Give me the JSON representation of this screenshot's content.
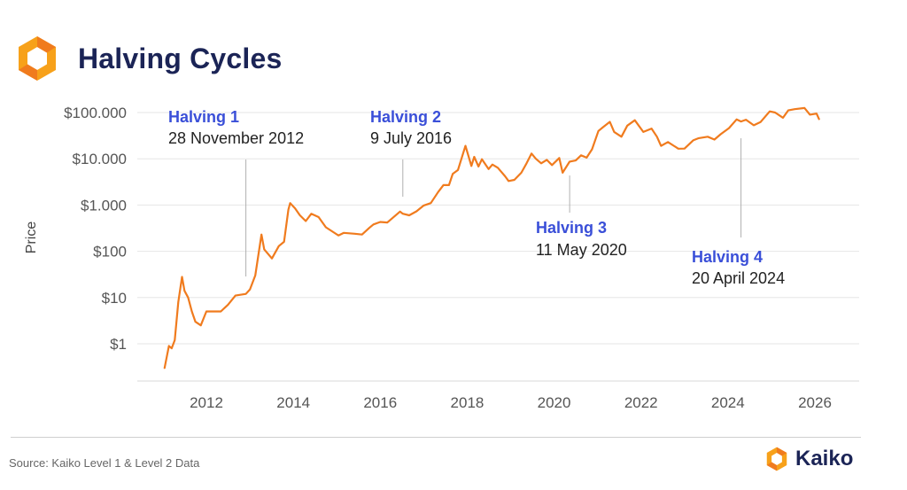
{
  "header": {
    "title": "Halving Cycles",
    "logo_icon": "kaiko-hexagon-icon"
  },
  "footer": {
    "source": "Source: Kaiko Level 1 & Level 2 Data",
    "brand": "Kaiko",
    "brand_icon": "kaiko-hexagon-icon"
  },
  "colors": {
    "line": "#f07b1e",
    "annotation_title": "#3a4fd8",
    "brand_navy": "#1b2456",
    "logo_orange": "#f7a11a"
  },
  "chart_data": {
    "type": "line",
    "title": "",
    "xlabel": "",
    "ylabel": "Price",
    "y_scale": "log",
    "ylim": [
      0.1,
      150000
    ],
    "xlim": [
      "2010-11-01",
      "2026-06-30"
    ],
    "grid": true,
    "x_ticks": [
      "2012",
      "2014",
      "2016",
      "2018",
      "2020",
      "2022",
      "2024",
      "2026"
    ],
    "y_ticks": [
      {
        "value": 1,
        "label": "$1"
      },
      {
        "value": 10,
        "label": "$10"
      },
      {
        "value": 100,
        "label": "$100"
      },
      {
        "value": 1000,
        "label": "$1.000"
      },
      {
        "value": 10000,
        "label": "$10.000"
      },
      {
        "value": 100000,
        "label": "$100.000"
      }
    ],
    "series": [
      {
        "x": [
          "2011-01-15",
          "2011-02-20",
          "2011-03-15",
          "2011-04-10",
          "2011-05-10",
          "2011-06-10",
          "2011-07-01",
          "2011-08-01",
          "2011-09-01",
          "2011-10-01",
          "2011-11-15",
          "2012-01-01",
          "2012-03-01",
          "2012-05-01",
          "2012-07-01",
          "2012-09-01",
          "2012-11-28",
          "2013-01-01",
          "2013-02-15",
          "2013-04-08",
          "2013-05-01",
          "2013-07-05",
          "2013-09-01",
          "2013-10-15",
          "2013-11-20",
          "2013-12-05",
          "2014-01-15",
          "2014-02-25",
          "2014-04-15",
          "2014-06-01",
          "2014-08-01",
          "2014-10-01",
          "2015-01-15",
          "2015-03-01",
          "2015-06-01",
          "2015-08-01",
          "2015-10-01",
          "2015-11-05",
          "2016-01-01",
          "2016-03-01",
          "2016-06-15",
          "2016-07-09",
          "2016-09-01",
          "2016-11-01",
          "2017-01-01",
          "2017-03-01",
          "2017-05-01",
          "2017-06-15",
          "2017-08-01",
          "2017-09-01",
          "2017-10-15",
          "2017-12-17",
          "2018-02-05",
          "2018-03-01",
          "2018-04-06",
          "2018-05-05",
          "2018-06-30",
          "2018-08-01",
          "2018-09-15",
          "2018-11-15",
          "2018-12-15",
          "2019-02-01",
          "2019-04-01",
          "2019-05-15",
          "2019-06-26",
          "2019-08-01",
          "2019-09-15",
          "2019-11-01",
          "2019-12-15",
          "2020-02-14",
          "2020-03-13",
          "2020-05-11",
          "2020-07-01",
          "2020-08-15",
          "2020-10-01",
          "2020-11-15",
          "2021-01-08",
          "2021-02-15",
          "2021-04-14",
          "2021-05-20",
          "2021-07-20",
          "2021-09-07",
          "2021-11-10",
          "2022-01-20",
          "2022-03-30",
          "2022-05-15",
          "2022-06-18",
          "2022-08-15",
          "2022-11-10",
          "2023-01-01",
          "2023-03-15",
          "2023-05-01",
          "2023-07-15",
          "2023-09-10",
          "2023-11-01",
          "2024-01-10",
          "2024-03-14",
          "2024-04-20",
          "2024-06-01",
          "2024-08-05",
          "2024-10-01",
          "2024-12-17",
          "2025-02-01",
          "2025-04-08",
          "2025-05-22",
          "2025-07-15",
          "2025-10-06",
          "2025-11-20",
          "2026-01-15",
          "2026-02-05"
        ],
        "values": [
          0.3,
          0.9,
          0.8,
          1.2,
          8,
          28,
          14,
          10,
          5,
          3,
          2.5,
          5,
          5,
          5,
          7,
          11,
          12,
          15,
          30,
          230,
          110,
          70,
          130,
          160,
          800,
          1100,
          850,
          600,
          450,
          650,
          550,
          330,
          220,
          250,
          240,
          230,
          320,
          380,
          430,
          420,
          720,
          650,
          600,
          730,
          980,
          1100,
          1900,
          2700,
          2700,
          4700,
          5700,
          19000,
          7000,
          11000,
          6800,
          9800,
          6000,
          7500,
          6400,
          4200,
          3300,
          3500,
          5000,
          8000,
          13000,
          10000,
          8000,
          9500,
          7300,
          10400,
          5000,
          8700,
          9200,
          11900,
          10600,
          16000,
          40000,
          48000,
          63000,
          38000,
          30000,
          52000,
          68000,
          38000,
          45000,
          30000,
          19000,
          23000,
          16500,
          16600,
          25000,
          28000,
          30000,
          26000,
          34000,
          46000,
          71000,
          64000,
          70000,
          53000,
          62000,
          106000,
          100000,
          77000,
          111000,
          118000,
          125000,
          90000,
          95000,
          72000
        ]
      }
    ],
    "annotations": [
      {
        "title": "Halving 1",
        "date_label": "28 November 2012",
        "date": "2012-11-28"
      },
      {
        "title": "Halving 2",
        "date_label": "9 July 2016",
        "date": "2016-07-09"
      },
      {
        "title": "Halving 3",
        "date_label": "11 May 2020",
        "date": "2020-05-11"
      },
      {
        "title": "Halving 4",
        "date_label": "20 April 2024",
        "date": "2024-04-20"
      }
    ]
  }
}
